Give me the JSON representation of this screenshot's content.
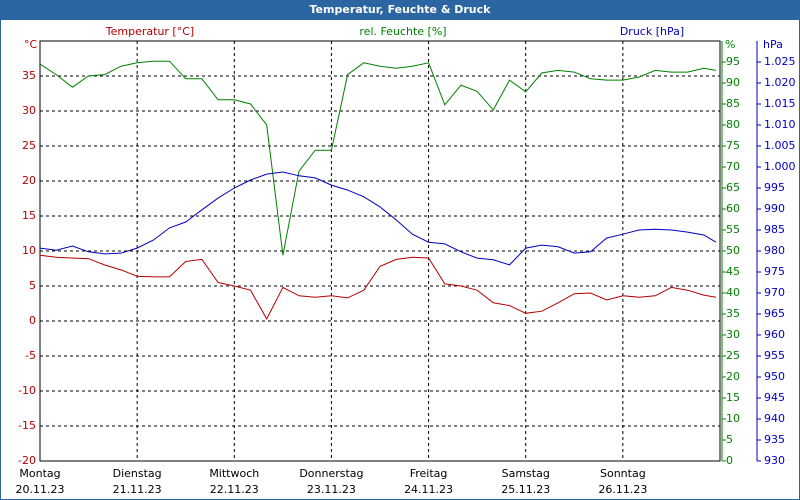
{
  "chart_data": {
    "type": "line",
    "title": "Temperatur, Feuchte & Druck",
    "ylabel": "°C",
    "y2label": "%",
    "y3label": "hPa",
    "x": [
      0,
      4,
      8,
      12,
      16,
      20,
      24,
      28,
      32,
      36,
      40,
      44,
      48,
      52,
      56,
      60,
      64,
      68,
      72,
      76,
      80,
      84,
      88,
      92,
      96,
      100,
      104,
      108,
      112,
      116,
      120,
      124,
      128,
      132,
      136,
      140,
      144,
      148,
      152,
      156,
      160,
      164,
      167
    ],
    "xlim": [
      0,
      168
    ],
    "xticks": [
      {
        "value": 0,
        "label": "Montag 20.11.23"
      },
      {
        "value": 24,
        "label": "Dienstag 21.11.23"
      },
      {
        "value": 48,
        "label": "Mittwoch 22.11.23"
      },
      {
        "value": 72,
        "label": "Donnerstag 23.11.23"
      },
      {
        "value": 96,
        "label": "Freitag 24.11.23"
      },
      {
        "value": 120,
        "label": "Samstag 25.11.23"
      },
      {
        "value": 144,
        "label": "Sonntag 26.11.23"
      }
    ],
    "ylim": [
      -20,
      40
    ],
    "yticks": [
      -20,
      -15,
      -10,
      -5,
      0,
      5,
      10,
      15,
      20,
      25,
      30,
      35
    ],
    "y2lim": [
      0,
      100
    ],
    "y2ticks": [
      0,
      5,
      10,
      15,
      20,
      25,
      30,
      35,
      40,
      45,
      50,
      55,
      60,
      65,
      70,
      75,
      80,
      85,
      90,
      95
    ],
    "y3lim": [
      930,
      1030
    ],
    "y3ticks": [
      930,
      935,
      940,
      945,
      950,
      955,
      960,
      965,
      970,
      975,
      980,
      985,
      990,
      995,
      {
        "value": 1000,
        "label": "1.000"
      },
      {
        "value": 1005,
        "label": "1.005"
      },
      {
        "value": 1010,
        "label": "1.010"
      },
      {
        "value": 1015,
        "label": "1.015"
      },
      {
        "value": 1020,
        "label": "1.020"
      },
      {
        "value": 1025,
        "label": "1.025"
      }
    ],
    "grid": true,
    "series": [
      {
        "name": "Temperatur [°C]",
        "color": "#b40000",
        "axis": "y",
        "values": [
          9.4,
          9.1,
          9,
          8.9,
          8,
          7.3,
          6.4,
          6.3,
          6.3,
          8.5,
          8.8,
          5.5,
          5,
          4.4,
          0.3,
          4.8,
          3.6,
          3.4,
          3.6,
          3.3,
          4.4,
          7.8,
          8.8,
          9.1,
          9,
          5.3,
          5,
          4.4,
          2.6,
          2.2,
          1.1,
          1.4,
          2.6,
          3.9,
          4,
          3,
          3.6,
          3.4,
          3.6,
          4.8,
          4.4,
          3.7,
          3.4
        ]
      },
      {
        "name": "rel. Feuchte [%]",
        "color": "#008000",
        "axis": "y2",
        "values": [
          94.5,
          92,
          89,
          91.7,
          92,
          94,
          94.8,
          95.2,
          95.2,
          91,
          91,
          86,
          86,
          85,
          80,
          49,
          69,
          74,
          74,
          92,
          94.8,
          94,
          93.5,
          94,
          94.8,
          84.8,
          89.5,
          88,
          83.6,
          90.7,
          87.9,
          92.4,
          93,
          92.6,
          91,
          90.7,
          90.7,
          91.4,
          93,
          92.6,
          92.6,
          93.5,
          93
        ]
      },
      {
        "name": "Druck [hPa]",
        "color": "#0000c0",
        "axis": "y3",
        "values": [
          980.7,
          980.2,
          981.2,
          979.8,
          979.3,
          979.5,
          980.7,
          982.6,
          985.5,
          986.9,
          989.8,
          992.6,
          995,
          996.9,
          998.3,
          998.8,
          997.9,
          997.4,
          995.7,
          994.5,
          992.9,
          990.5,
          987.4,
          984,
          982.1,
          981.7,
          979.8,
          978.3,
          977.9,
          976.7,
          980.7,
          981.4,
          981,
          979.5,
          979.8,
          983.1,
          984,
          985,
          985.2,
          985,
          984.5,
          983.8,
          982.1
        ]
      }
    ]
  }
}
